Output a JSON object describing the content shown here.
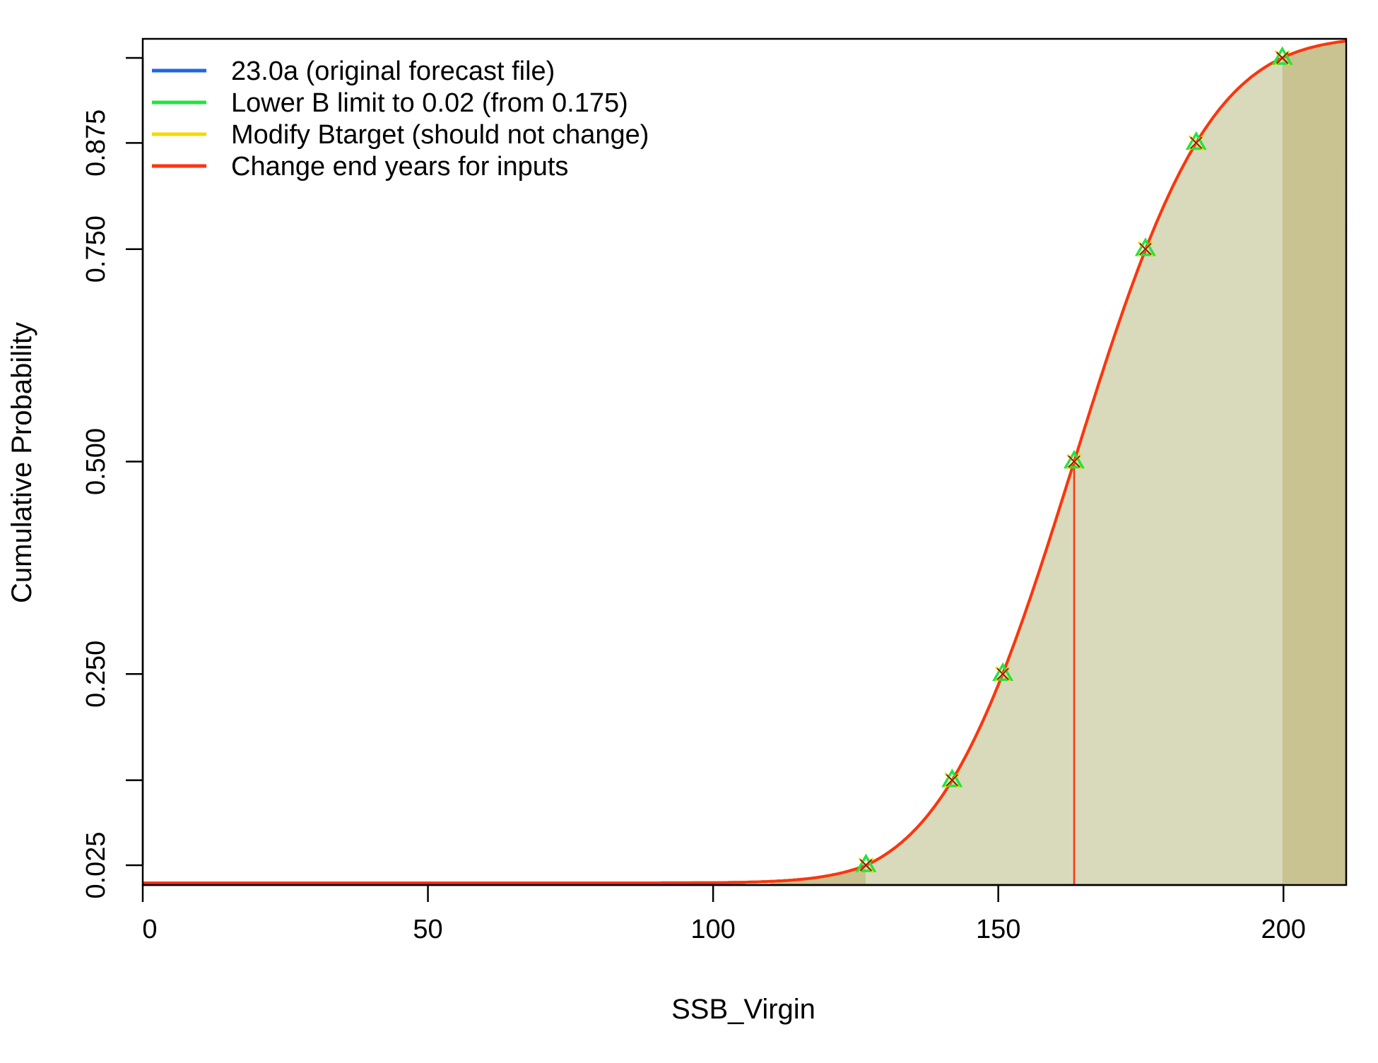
{
  "chart_data": {
    "type": "line",
    "xlabel": "SSB_Virgin",
    "ylabel": "Cumulative Probability",
    "xlim": [
      0,
      211
    ],
    "ylim": [
      0,
      1
    ],
    "xticks": [
      0,
      50,
      100,
      150,
      200
    ],
    "xtick_labels": [
      "0",
      "50",
      "100",
      "150",
      "200"
    ],
    "yticks": [
      0.025,
      0.125,
      0.25,
      0.5,
      0.75,
      0.875,
      0.975
    ],
    "ytick_labels": [
      "0.025",
      "",
      "0.250",
      "0.500",
      "0.750",
      "0.875",
      ""
    ],
    "grid": false,
    "legend_position": "top-left",
    "distribution": {
      "type": "normal",
      "mean": 163.3,
      "sd": 18.6
    },
    "quantile_levels": [
      0.025,
      0.125,
      0.25,
      0.5,
      0.75,
      0.875,
      0.975
    ],
    "quantile_x": [
      126.8,
      141.9,
      150.8,
      163.3,
      175.8,
      184.7,
      199.8
    ],
    "median_x": 163.3,
    "shading": {
      "inner_range": [
        126.8,
        199.8
      ],
      "inner_color": "#d9dabb",
      "outer_color": "#c9c291",
      "outer_range_right": [
        199.8,
        211
      ]
    },
    "series": [
      {
        "name": "23.0a (original forecast file)",
        "color": "#1a66e6"
      },
      {
        "name": "Lower B limit to 0.02 (from 0.175)",
        "color": "#1ee63c"
      },
      {
        "name": "Modify Btarget (should not change)",
        "color": "#f5d800"
      },
      {
        "name": "Change end years for inputs",
        "color": "#ff3311"
      }
    ],
    "marker_colors": [
      "#1ee63c",
      "#f5d800",
      "#8b1a1a"
    ]
  }
}
